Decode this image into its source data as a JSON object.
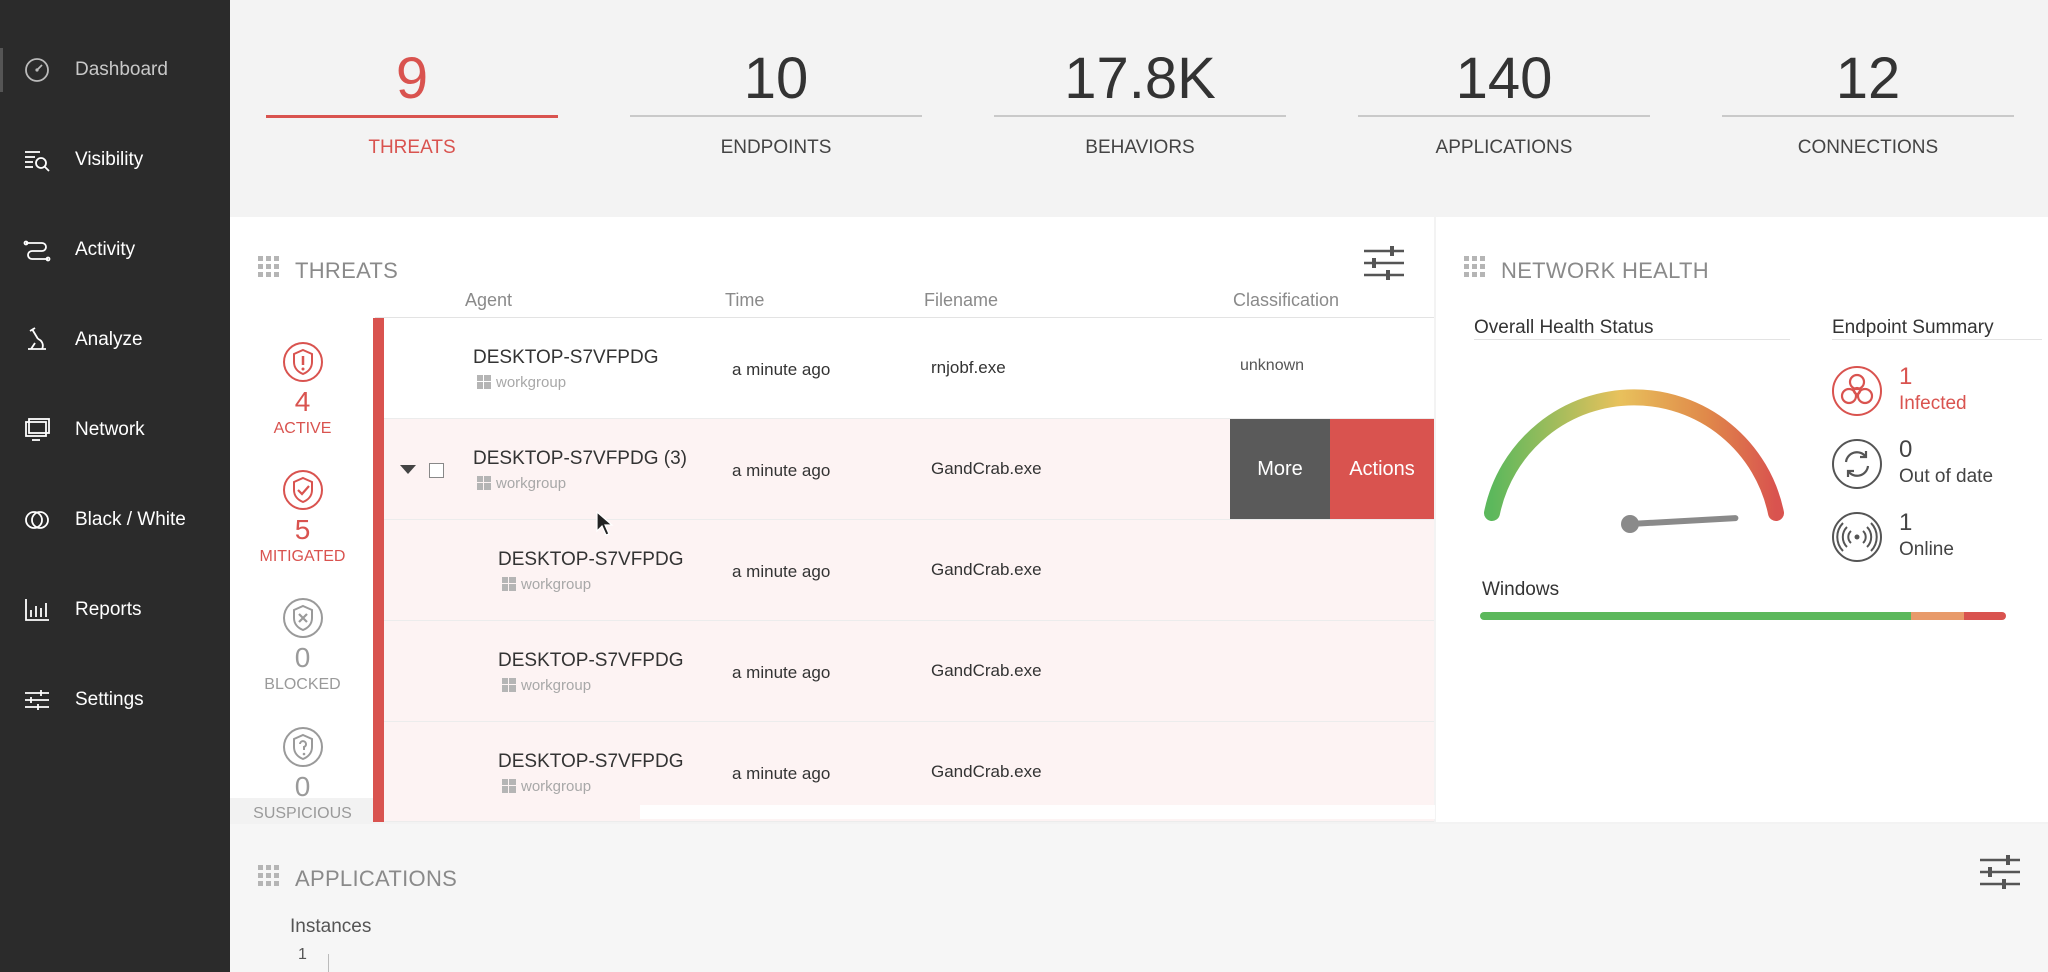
{
  "sidebar": {
    "items": [
      {
        "label": "Dashboard",
        "icon": "dashboard-icon"
      },
      {
        "label": "Visibility",
        "icon": "visibility-icon"
      },
      {
        "label": "Activity",
        "icon": "activity-icon"
      },
      {
        "label": "Analyze",
        "icon": "microscope-icon"
      },
      {
        "label": "Network",
        "icon": "monitor-icon"
      },
      {
        "label": "Black / White",
        "icon": "black-white-icon"
      },
      {
        "label": "Reports",
        "icon": "bar-chart-icon"
      },
      {
        "label": "Settings",
        "icon": "sliders-icon"
      }
    ]
  },
  "stats": [
    {
      "value": "9",
      "label": "THREATS"
    },
    {
      "value": "10",
      "label": "ENDPOINTS"
    },
    {
      "value": "17.8K",
      "label": "BEHAVIORS"
    },
    {
      "value": "140",
      "label": "APPLICATIONS"
    },
    {
      "value": "12",
      "label": "CONNECTIONS"
    }
  ],
  "threats": {
    "title": "THREATS",
    "columns": {
      "agent": "Agent",
      "time": "Time",
      "filename": "Filename",
      "classification": "Classification"
    },
    "status": {
      "active": {
        "count": "4",
        "label": "ACTIVE"
      },
      "mitigated": {
        "count": "5",
        "label": "MITIGATED"
      },
      "blocked": {
        "count": "0",
        "label": "BLOCKED"
      },
      "suspicious": {
        "count": "0",
        "label": "SUSPICIOUS"
      }
    },
    "rows": [
      {
        "agent": "DESKTOP-S7VFPDG",
        "group": "workgroup",
        "time": "a minute ago",
        "file": "rnjobf.exe",
        "classification": "unknown"
      },
      {
        "agent": "DESKTOP-S7VFPDG (3)",
        "group": "workgroup",
        "time": "a minute ago",
        "file": "GandCrab.exe",
        "classification": ""
      },
      {
        "agent": "DESKTOP-S7VFPDG",
        "group": "workgroup",
        "time": "a minute ago",
        "file": "GandCrab.exe",
        "classification": ""
      },
      {
        "agent": "DESKTOP-S7VFPDG",
        "group": "workgroup",
        "time": "a minute ago",
        "file": "GandCrab.exe",
        "classification": ""
      },
      {
        "agent": "DESKTOP-S7VFPDG",
        "group": "workgroup",
        "time": "a minute ago",
        "file": "GandCrab.exe",
        "classification": ""
      }
    ],
    "more_label": "More",
    "actions_label": "Actions"
  },
  "network": {
    "title": "NETWORK HEALTH",
    "overall_label": "Overall Health Status",
    "summary_label": "Endpoint Summary",
    "gauge_value": 0.93,
    "endpoints": [
      {
        "count": "1",
        "label": "Infected",
        "icon": "biohazard-icon",
        "color": "#d9534f"
      },
      {
        "count": "0",
        "label": "Out of date",
        "icon": "refresh-icon",
        "color": "#444444"
      },
      {
        "count": "1",
        "label": "Online",
        "icon": "signal-icon",
        "color": "#444444"
      }
    ],
    "os_label": "Windows",
    "os_bar": {
      "green": 0.82,
      "orange": 0.1,
      "red": 0.08
    }
  },
  "applications": {
    "title": "APPLICATIONS",
    "instances_label": "Instances",
    "axis_tick": "1"
  },
  "colors": {
    "accent": "#d9534f",
    "sidebar": "#2b2b2b",
    "green": "#5cb85c"
  }
}
